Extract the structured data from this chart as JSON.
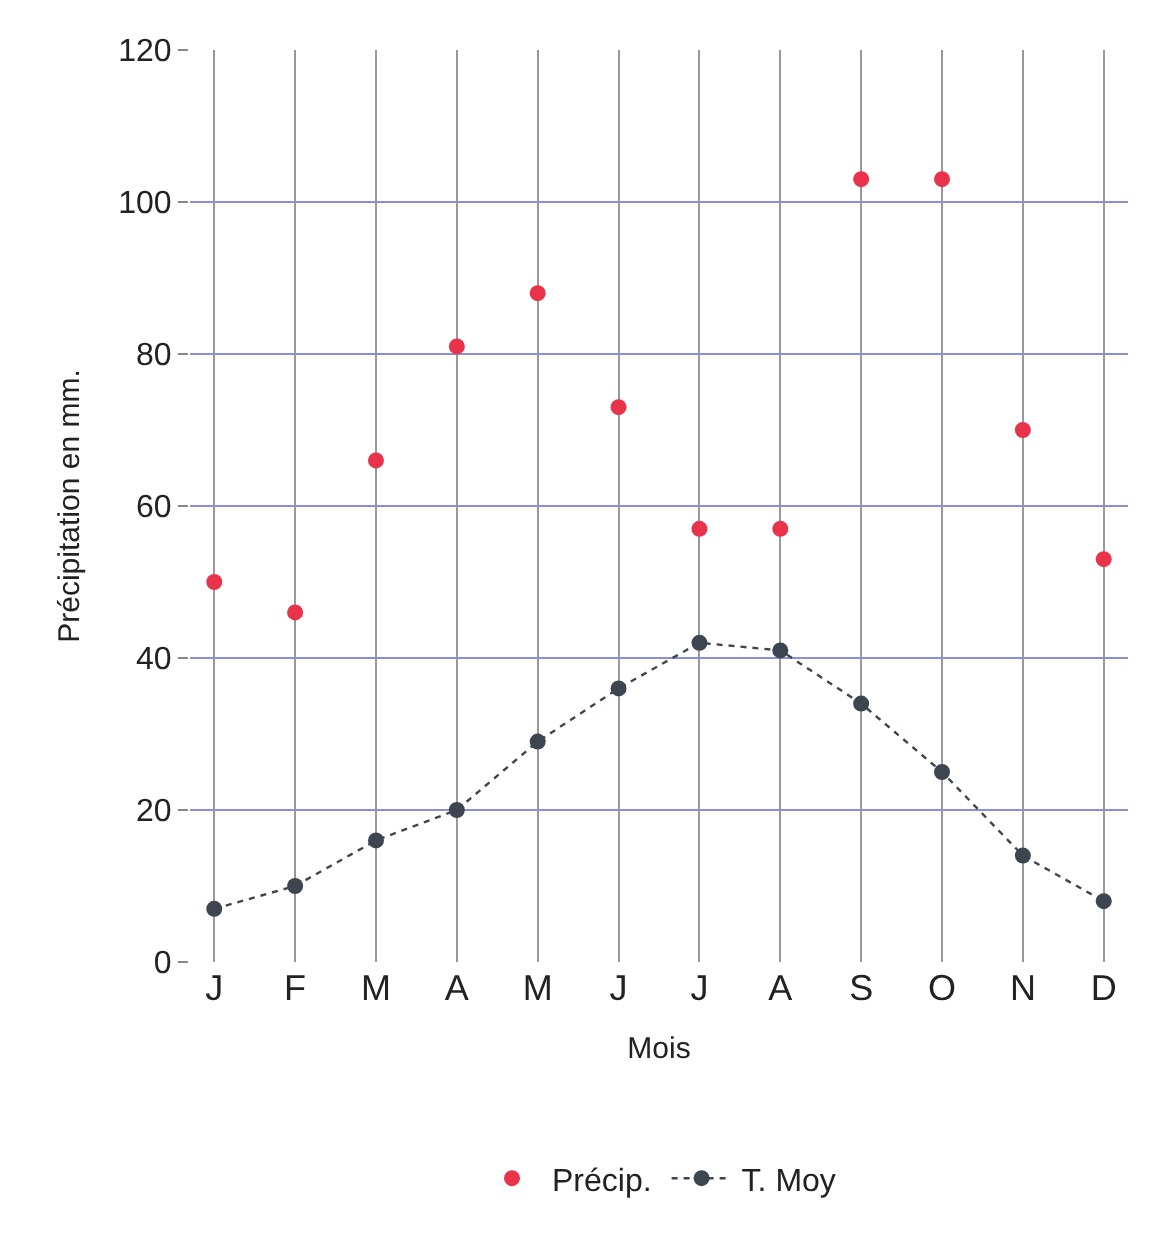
{
  "chart_data": {
    "type": "scatter",
    "xlabel": "Mois",
    "ylabel": "Précipitation en mm.",
    "categories": [
      "J",
      "F",
      "M",
      "A",
      "M",
      "J",
      "J",
      "A",
      "S",
      "O",
      "N",
      "D"
    ],
    "series": [
      {
        "name": "Précip.",
        "color": "#e8334a",
        "marker": "circle",
        "line_style": "none",
        "values": [
          50,
          46,
          66,
          81,
          88,
          73,
          57,
          57,
          103,
          103,
          70,
          53
        ]
      },
      {
        "name": "T. Moy",
        "color": "#3d4550",
        "marker": "circle",
        "line_style": "dotted",
        "type": "line",
        "values": [
          7,
          10,
          16,
          20,
          29,
          36,
          42,
          41,
          34,
          25,
          14,
          8
        ]
      }
    ],
    "ylim": [
      0,
      120
    ],
    "yticks": [
      0,
      20,
      40,
      60,
      80,
      100,
      120
    ],
    "grid": true,
    "legend": "bottom"
  }
}
